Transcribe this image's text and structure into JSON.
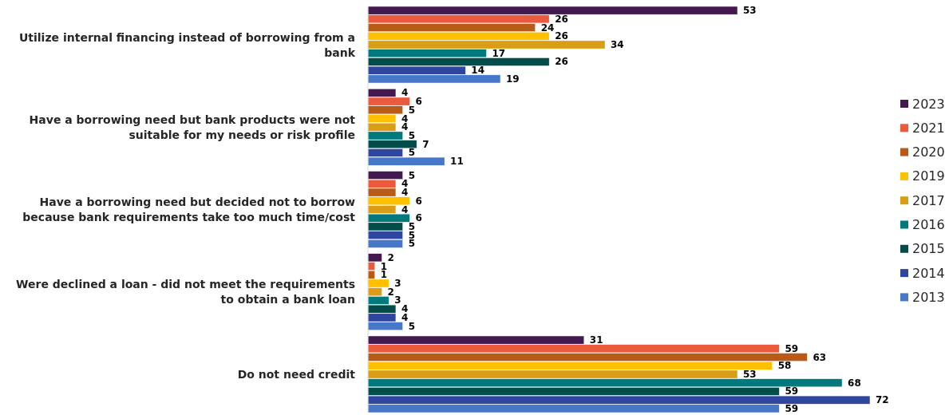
{
  "chart_data": {
    "type": "bar",
    "orientation": "horizontal",
    "data_labels": true,
    "legend": "right",
    "categories": [
      "Utilize internal financing instead of borrowing from a bank",
      "Have a borrowing need but bank products were not suitable for my needs or risk profile",
      "Have a borrowing need but decided not to borrow because bank requirements take too much time/cost",
      "Were declined a loan - did not meet the requirements to obtain a bank loan",
      "Do not need credit"
    ],
    "series": [
      {
        "name": "2023",
        "color": "#44194f",
        "values": [
          53,
          4,
          5,
          2,
          31
        ]
      },
      {
        "name": "2021",
        "color": "#ec5a3e",
        "values": [
          26,
          6,
          4,
          1,
          59
        ]
      },
      {
        "name": "2020",
        "color": "#b85a18",
        "values": [
          24,
          5,
          4,
          1,
          63
        ]
      },
      {
        "name": "2019",
        "color": "#ffc000",
        "values": [
          26,
          4,
          6,
          3,
          58
        ]
      },
      {
        "name": "2017",
        "color": "#d99e16",
        "values": [
          34,
          4,
          4,
          2,
          53
        ]
      },
      {
        "name": "2016",
        "color": "#007a7c",
        "values": [
          17,
          5,
          6,
          3,
          68
        ]
      },
      {
        "name": "2015",
        "color": "#024d4a",
        "values": [
          26,
          7,
          5,
          4,
          59
        ]
      },
      {
        "name": "2014",
        "color": "#2f45a0",
        "values": [
          14,
          5,
          5,
          4,
          72
        ]
      },
      {
        "name": "2013",
        "color": "#4677c8",
        "values": [
          19,
          11,
          5,
          5,
          59
        ]
      }
    ]
  }
}
